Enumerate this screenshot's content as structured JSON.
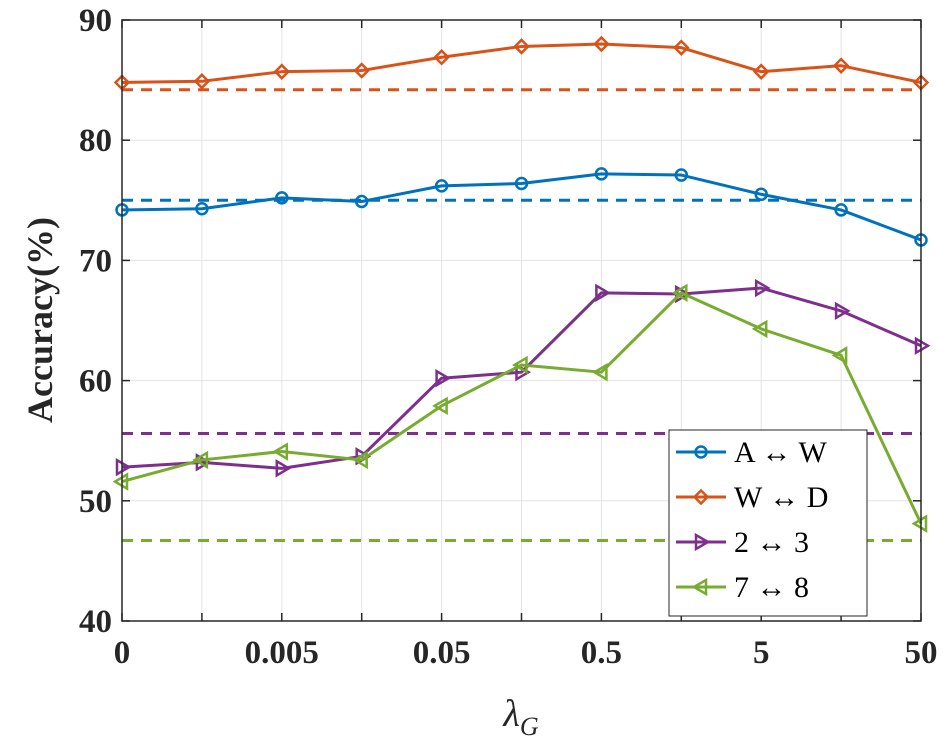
{
  "chart_data": {
    "type": "line",
    "title": "",
    "xlabel": {
      "main": "λ",
      "sub": "G"
    },
    "ylabel": "Accuracy(%)",
    "ylim": [
      40,
      90
    ],
    "yticks": [
      40,
      50,
      60,
      70,
      80,
      90
    ],
    "x_positions": [
      0,
      1,
      2,
      3,
      4,
      5,
      6,
      7,
      8,
      9,
      10
    ],
    "xticks": [
      {
        "pos": 0,
        "label": "0"
      },
      {
        "pos": 2,
        "label": "0.005"
      },
      {
        "pos": 4,
        "label": "0.05"
      },
      {
        "pos": 6,
        "label": "0.5"
      },
      {
        "pos": 8,
        "label": "5"
      },
      {
        "pos": 10,
        "label": "50"
      }
    ],
    "grid": true,
    "legend_position": "bottom-right",
    "series": [
      {
        "name": "A ↔ W",
        "color": "#0072BD",
        "marker": "circle",
        "values": [
          74.2,
          74.3,
          75.2,
          74.9,
          76.2,
          76.4,
          77.2,
          77.1,
          75.5,
          74.2,
          71.7
        ],
        "baseline": 75.0
      },
      {
        "name": "W ↔ D",
        "color": "#D95319",
        "marker": "diamond",
        "values": [
          84.8,
          84.9,
          85.7,
          85.8,
          86.9,
          87.8,
          88.0,
          87.7,
          85.7,
          86.2,
          84.8
        ],
        "baseline": 84.2
      },
      {
        "name": "2 ↔ 3",
        "color": "#7E2F8E",
        "marker": "triangle-right",
        "values": [
          52.8,
          53.2,
          52.7,
          53.7,
          60.2,
          60.7,
          67.3,
          67.2,
          67.7,
          65.8,
          62.9
        ],
        "baseline": 55.6
      },
      {
        "name": "7 ↔ 8",
        "color": "#77AC30",
        "marker": "triangle-left",
        "values": [
          51.6,
          53.4,
          54.1,
          53.4,
          57.9,
          61.3,
          60.7,
          67.3,
          64.3,
          62.1,
          48.1
        ],
        "baseline": 46.7
      }
    ]
  }
}
